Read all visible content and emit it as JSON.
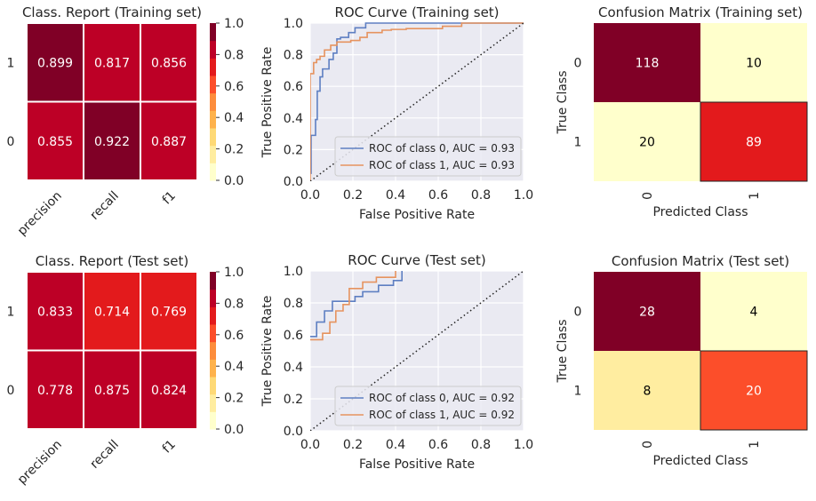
{
  "colors": {
    "scale": [
      "#ffffcc",
      "#ffeda0",
      "#fed976",
      "#feb24c",
      "#fd8d3c",
      "#fc4e2a",
      "#e31a1c",
      "#bd0026",
      "#800026"
    ],
    "roc_class0": "#5e7fc2",
    "roc_class1": "#e6935f",
    "axes_bg": "#eaeaf2"
  },
  "chart_data": [
    {
      "type": "heatmap",
      "title": "Class. Report (Training set)",
      "rows": [
        "1",
        "0"
      ],
      "columns": [
        "precision",
        "recall",
        "f1"
      ],
      "values": [
        [
          0.899,
          0.817,
          0.856
        ],
        [
          0.855,
          0.922,
          0.887
        ]
      ],
      "colorbar": {
        "ticks": [
          "0.0",
          "0.2",
          "0.4",
          "0.6",
          "0.8",
          "1.0"
        ],
        "range": [
          0,
          1
        ],
        "bins": 9,
        "cmap": "YlOrRd"
      }
    },
    {
      "type": "line",
      "title": "ROC Curve (Training set)",
      "xlabel": "False Positive Rate",
      "ylabel": "True Positive Rate",
      "xlim": [
        0,
        1
      ],
      "ylim": [
        0,
        1
      ],
      "xticks": [
        "0.0",
        "0.2",
        "0.4",
        "0.6",
        "0.8",
        "1.0"
      ],
      "yticks": [
        "0.0",
        "0.2",
        "0.4",
        "0.6",
        "0.8",
        "1.0"
      ],
      "grid": true,
      "legend": "lower-right",
      "series": [
        {
          "name": "ROC of class 0, AUC = 0.93",
          "x": [
            0,
            0.004,
            0.004,
            0.025,
            0.033,
            0.046,
            0.058,
            0.088,
            0.108,
            0.125,
            0.142,
            0.18,
            0.21,
            0.26,
            1.0
          ],
          "y": [
            0.05,
            0.05,
            0.29,
            0.39,
            0.57,
            0.66,
            0.71,
            0.77,
            0.81,
            0.9,
            0.91,
            0.94,
            0.97,
            1.0,
            1.0
          ]
        },
        {
          "name": "ROC of class 1, AUC = 0.93",
          "x": [
            0,
            0,
            0.016,
            0.03,
            0.046,
            0.067,
            0.096,
            0.125,
            0.19,
            0.233,
            0.267,
            0.337,
            0.38,
            0.45,
            0.62,
            0.71,
            1.0
          ],
          "y": [
            0,
            0.68,
            0.75,
            0.77,
            0.79,
            0.83,
            0.86,
            0.88,
            0.89,
            0.91,
            0.94,
            0.955,
            0.96,
            0.965,
            0.98,
            1.0,
            1.0
          ]
        },
        {
          "name": "",
          "x": [
            0,
            1
          ],
          "y": [
            0,
            1
          ],
          "style": "dotted"
        }
      ]
    },
    {
      "type": "heatmap",
      "title": "Confusion Matrix (Training set)",
      "xlabel": "Predicted Class",
      "ylabel": "True Class",
      "rows": [
        "0",
        "1"
      ],
      "columns": [
        "0",
        "1"
      ],
      "values": [
        [
          118,
          10
        ],
        [
          20,
          89
        ]
      ]
    },
    {
      "type": "heatmap",
      "title": "Class. Report (Test set)",
      "rows": [
        "1",
        "0"
      ],
      "columns": [
        "precision",
        "recall",
        "f1"
      ],
      "values": [
        [
          0.833,
          0.714,
          0.769
        ],
        [
          0.778,
          0.875,
          0.824
        ]
      ],
      "colorbar": {
        "ticks": [
          "0.0",
          "0.2",
          "0.4",
          "0.6",
          "0.8",
          "1.0"
        ],
        "range": [
          0,
          1
        ],
        "bins": 9,
        "cmap": "YlOrRd"
      }
    },
    {
      "type": "line",
      "title": "ROC Curve (Test set)",
      "xlabel": "False Positive Rate",
      "ylabel": "True Positive Rate",
      "xlim": [
        0,
        1
      ],
      "ylim": [
        0.0,
        1
      ],
      "xticks": [
        "0.0",
        "0.2",
        "0.4",
        "0.6",
        "0.8",
        "1.0"
      ],
      "yticks": [
        "0.0",
        "0.2",
        "0.4",
        "0.6",
        "0.8",
        "1.0"
      ],
      "grid": true,
      "legend": "lower-right",
      "series": [
        {
          "name": "ROC of class 0, AUC = 0.92",
          "x": [
            0,
            0.03,
            0.03,
            0.067,
            0.067,
            0.104,
            0.104,
            0.21,
            0.21,
            0.246,
            0.246,
            0.32,
            0.32,
            0.39,
            0.39,
            0.43,
            0.43
          ],
          "y": [
            0.59,
            0.59,
            0.68,
            0.68,
            0.75,
            0.75,
            0.81,
            0.81,
            0.84,
            0.84,
            0.87,
            0.87,
            0.91,
            0.91,
            0.94,
            0.94,
            1.0
          ]
        },
        {
          "name": "ROC of class 1, AUC = 0.92",
          "x": [
            0,
            0.058,
            0.058,
            0.092,
            0.092,
            0.12,
            0.12,
            0.154,
            0.154,
            0.183,
            0.183,
            0.246,
            0.246,
            0.31,
            0.31,
            0.4,
            0.4
          ],
          "y": [
            0.57,
            0.57,
            0.61,
            0.61,
            0.68,
            0.68,
            0.75,
            0.75,
            0.79,
            0.79,
            0.89,
            0.89,
            0.93,
            0.93,
            0.96,
            0.96,
            1.0
          ]
        },
        {
          "name": "",
          "x": [
            0,
            1
          ],
          "y": [
            0,
            1
          ],
          "style": "dotted"
        }
      ]
    },
    {
      "type": "heatmap",
      "title": "Confusion Matrix (Test set)",
      "xlabel": "Predicted Class",
      "ylabel": "True Class",
      "rows": [
        "0",
        "1"
      ],
      "columns": [
        "0",
        "1"
      ],
      "values": [
        [
          28,
          4
        ],
        [
          8,
          20
        ]
      ]
    }
  ]
}
